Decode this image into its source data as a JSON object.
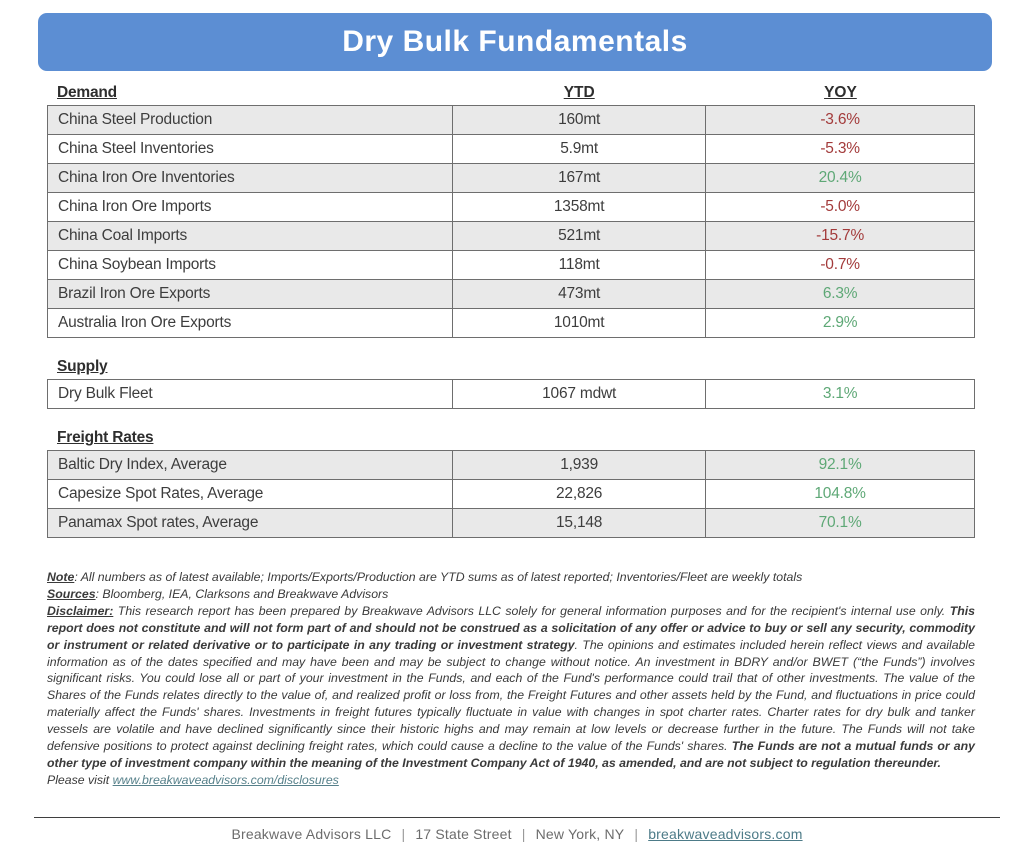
{
  "title": "Dry Bulk Fundamentals",
  "colors": {
    "header_blue": "#5C8ED3",
    "stripe_gray": "#e9e9e9",
    "positive_green": "#5ea876",
    "negative_red": "#a33b3b"
  },
  "columns": {
    "ytd": "YTD",
    "yoy": "YOY"
  },
  "sections": [
    {
      "id": "demand",
      "label": "Demand",
      "striped": true,
      "rows": [
        {
          "label": "China Steel Production",
          "ytd": "160mt",
          "yoy": "-3.6%",
          "dir": "down"
        },
        {
          "label": "China Steel Inventories",
          "ytd": "5.9mt",
          "yoy": "-5.3%",
          "dir": "down"
        },
        {
          "label": "China Iron Ore Inventories",
          "ytd": "167mt",
          "yoy": "20.4%",
          "dir": "up"
        },
        {
          "label": "China Iron Ore Imports",
          "ytd": "1358mt",
          "yoy": "-5.0%",
          "dir": "down"
        },
        {
          "label": "China Coal Imports",
          "ytd": "521mt",
          "yoy": "-15.7%",
          "dir": "down"
        },
        {
          "label": "China Soybean Imports",
          "ytd": "118mt",
          "yoy": "-0.7%",
          "dir": "down"
        },
        {
          "label": "Brazil Iron Ore Exports",
          "ytd": "473mt",
          "yoy": "6.3%",
          "dir": "up"
        },
        {
          "label": "Australia Iron Ore Exports",
          "ytd": "1010mt",
          "yoy": "2.9%",
          "dir": "up"
        }
      ]
    },
    {
      "id": "supply",
      "label": "Supply",
      "striped": false,
      "rows": [
        {
          "label": "Dry Bulk Fleet",
          "ytd": "1067 mdwt",
          "yoy": "3.1%",
          "dir": "up"
        }
      ]
    },
    {
      "id": "freight",
      "label": "Freight Rates",
      "striped": true,
      "rows": [
        {
          "label": "Baltic Dry Index, Average",
          "ytd": "1,939",
          "yoy": "92.1%",
          "dir": "up"
        },
        {
          "label": "Capesize Spot Rates, Average",
          "ytd": "22,826",
          "yoy": "104.8%",
          "dir": "up"
        },
        {
          "label": "Panamax Spot rates, Average",
          "ytd": "15,148",
          "yoy": "70.1%",
          "dir": "up"
        }
      ]
    }
  ],
  "notes": {
    "note_label": "Note",
    "note_text": ": All numbers as of latest available; Imports/Exports/Production are YTD sums as of latest reported; Inventories/Fleet are weekly totals",
    "sources_label": "Sources",
    "sources_text": ": Bloomberg, IEA, Clarksons and Breakwave Advisors",
    "disclaimer_label": "Disclaimer:",
    "disclaimer_segments": [
      {
        "text": " This research report has been prepared by Breakwave Advisors LLC solely for general information purposes and for the recipient's internal use only. ",
        "bold": false
      },
      {
        "text": "This report does not constitute and will not form part of and should not be construed as a solicitation of any offer or advice to buy or sell any security, commodity or instrument or related derivative or to participate in any trading or investment strategy",
        "bold": true
      },
      {
        "text": ". The opinions and estimates included herein reflect views and available information as of the dates specified and may have been and may be subject to change without notice. An investment in BDRY and/or BWET (“the Funds”) involves significant risks. You could lose all or part of your investment in the Funds, and each of the Fund's performance could trail that of other investments. The value of the Shares of the Funds relates directly to the value of, and realized profit or loss from, the Freight Futures and other assets held by the Fund, and fluctuations in price could materially affect the Funds' shares. Investments in freight futures typically fluctuate in value with changes in spot charter rates. Charter rates for dry bulk and tanker vessels are volatile and have declined significantly since their historic highs and may remain at low levels or decrease further in the future. The Funds will not take defensive positions to protect against declining freight rates, which could cause a decline to the value of the Funds' shares. ",
        "bold": false
      },
      {
        "text": "The Funds are not a mutual funds or any other type of investment company within the meaning of the Investment Company Act of 1940, as amended, and are not subject to regulation thereunder.",
        "bold": true
      }
    ],
    "visit_text": "Please visit ",
    "visit_link": "www.breakwaveadvisors.com/disclosures"
  },
  "footer": {
    "company": "Breakwave Advisors LLC",
    "street": "17 State Street",
    "city": "New York, NY",
    "website": "breakwaveadvisors.com",
    "separator": "|"
  }
}
